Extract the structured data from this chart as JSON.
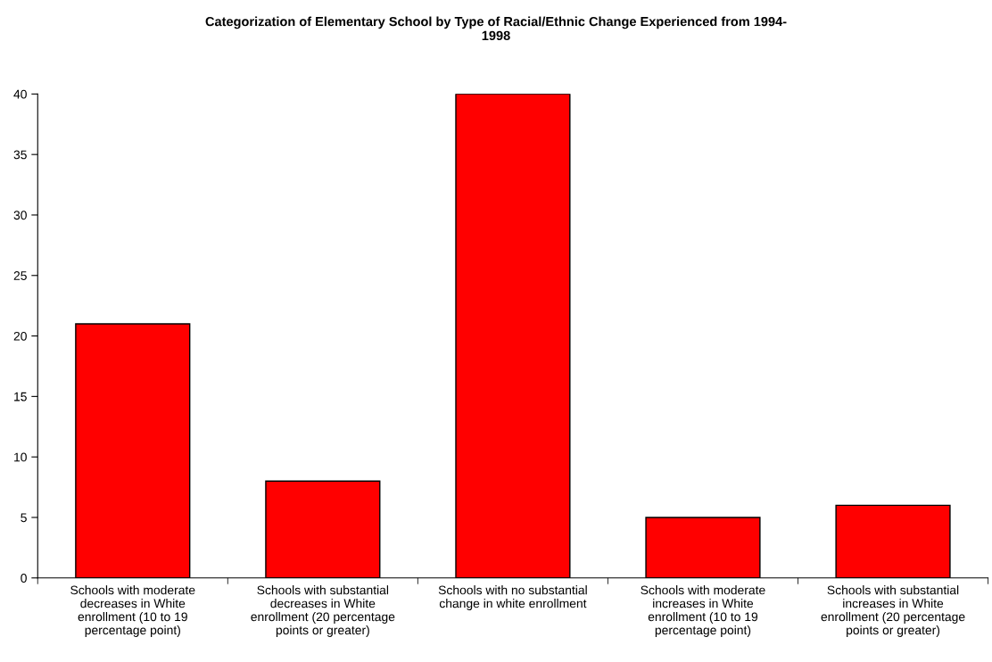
{
  "chart_data": {
    "type": "bar",
    "title": "Categorization of Elementary School by Type of Racial/Ethnic Change Experienced from 1994-\n1998",
    "categories": [
      "Schools with moderate\ndecreases in White\nenrollment (10 to 19\npercentage point)",
      "Schools with substantial\ndecreases in White\nenrollment (20 percentage\npoints or greater)",
      "Schools with no substantial\nchange in white enrollment",
      "Schools with moderate\nincreases in White\nenrollment (10 to 19\npercentage point)",
      "Schools with substantial\nincreases in White\nenrollment (20 percentage\npoints or greater)"
    ],
    "values": [
      21,
      8,
      40,
      5,
      6
    ],
    "color": "#ff0000",
    "ylim": [
      0,
      40
    ],
    "yticks": [
      0,
      5,
      10,
      15,
      20,
      25,
      30,
      35,
      40
    ],
    "grid": false,
    "legend": false
  }
}
